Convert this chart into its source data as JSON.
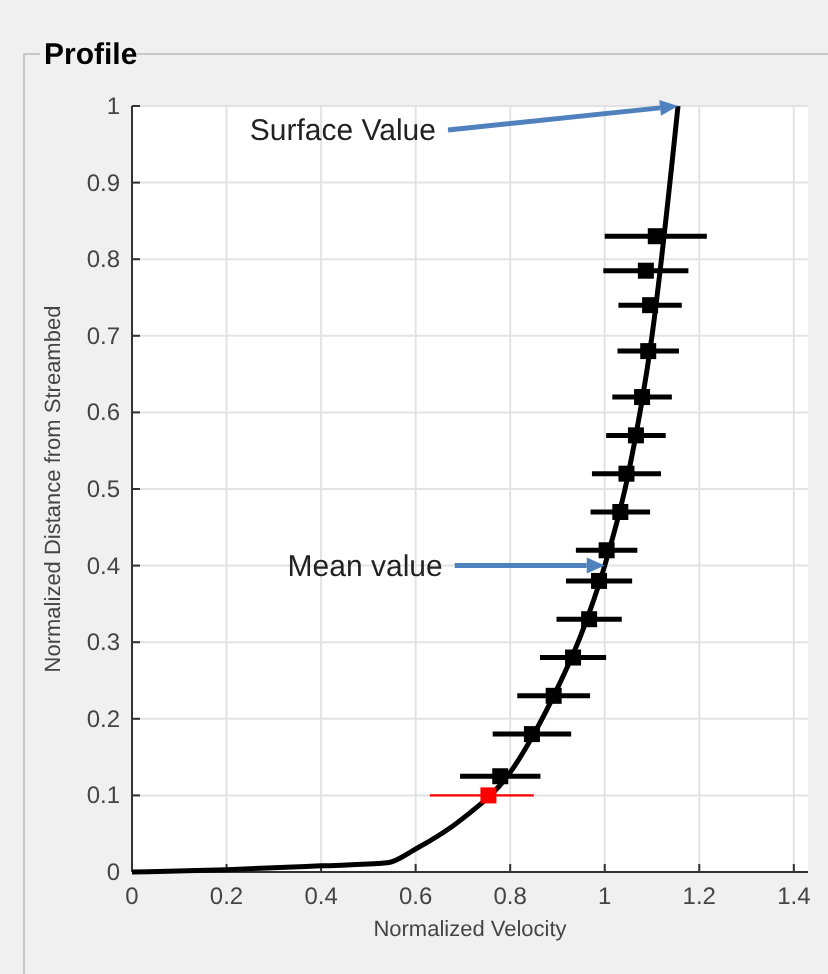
{
  "chart_data": {
    "type": "scatter",
    "title": "Profile",
    "xlabel": "Normalized Velocity",
    "ylabel": "Normalized Distance from Streambed",
    "xlim": [
      0,
      1.43
    ],
    "ylim": [
      0,
      1
    ],
    "xticks": [
      0,
      0.2,
      0.4,
      0.6,
      0.8,
      1,
      1.2,
      1.4
    ],
    "yticks": [
      0,
      0.1,
      0.2,
      0.3,
      0.4,
      0.5,
      0.6,
      0.7,
      0.8,
      0.9,
      1
    ],
    "grid": true,
    "marker": "square",
    "series": [
      {
        "type": "line",
        "color": "#000000",
        "marker": "none",
        "line_style": "solid",
        "x": [
          0,
          0.2,
          0.4,
          0.54,
          0.6,
          0.7,
          0.8,
          0.85,
          0.9,
          0.95,
          1.0,
          1.05,
          1.1,
          1.155
        ],
        "values": [
          0,
          0.003,
          0.008,
          0.012,
          0.03,
          0.07,
          0.13,
          0.18,
          0.24,
          0.31,
          0.4,
          0.52,
          0.7,
          1.0
        ]
      },
      {
        "color": "#000000",
        "x": [
          1.108,
          1.087,
          1.096,
          1.092,
          1.079,
          1.066,
          1.046,
          1.033,
          1.004,
          0.988,
          0.967,
          0.933,
          0.892,
          0.846,
          0.779
        ],
        "values": [
          0.83,
          0.785,
          0.74,
          0.68,
          0.62,
          0.57,
          0.52,
          0.47,
          0.42,
          0.38,
          0.33,
          0.28,
          0.23,
          0.18,
          0.125
        ],
        "xerrors": [
          0.108,
          0.09,
          0.067,
          0.065,
          0.063,
          0.063,
          0.073,
          0.063,
          0.065,
          0.07,
          0.069,
          0.07,
          0.077,
          0.083,
          0.085
        ]
      },
      {
        "color": "#ff0000",
        "x": [
          0.754
        ],
        "values": [
          0.1
        ],
        "xerrors": [
          [
            0.63,
            0.85
          ]
        ]
      }
    ],
    "annotations": [
      {
        "text": "Surface Value",
        "x": 1.155,
        "y": 1
      },
      {
        "text": "Mean value",
        "x": 1.0,
        "y": 0.4
      }
    ]
  }
}
